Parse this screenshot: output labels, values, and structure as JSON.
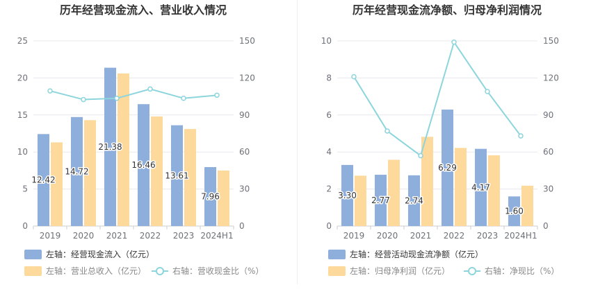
{
  "chart_data": [
    {
      "type": "bar",
      "title": "历年经营现金流入、营业收入情况",
      "categories": [
        "2019",
        "2020",
        "2021",
        "2022",
        "2023",
        "2024H1"
      ],
      "ylim_left": [
        0,
        25
      ],
      "yticks_left": [
        "0",
        "5",
        "10",
        "15",
        "20",
        "25"
      ],
      "ylim_right": [
        0,
        150
      ],
      "yticks_right": [
        "0",
        "30",
        "60",
        "90",
        "120",
        "150"
      ],
      "grid": true,
      "legend_position": "bottom",
      "series": [
        {
          "name": "左轴：经营现金流入（亿元）",
          "axis": "left",
          "kind": "bar",
          "color": "#8eaedc",
          "values": [
            12.42,
            14.72,
            21.38,
            16.46,
            13.61,
            7.96
          ],
          "labels": [
            "12.42",
            "14.72",
            "21.38",
            "16.46",
            "13.61",
            "7.96"
          ]
        },
        {
          "name": "左轴：营业总收入（亿元）",
          "axis": "left",
          "kind": "bar",
          "color": "#fdd99b",
          "values": [
            11.3,
            14.3,
            20.6,
            14.8,
            13.1,
            7.5
          ]
        },
        {
          "name": "右轴：营收现金比（%）",
          "axis": "right",
          "kind": "line",
          "color": "#8cd5dc",
          "values": [
            109.5,
            102.5,
            103.5,
            111,
            103.5,
            106
          ]
        }
      ]
    },
    {
      "type": "bar",
      "title": "历年经营现金流净额、归母净利润情况",
      "categories": [
        "2019",
        "2020",
        "2021",
        "2022",
        "2023",
        "2024H1"
      ],
      "ylim_left": [
        0,
        10
      ],
      "yticks_left": [
        "0",
        "2",
        "4",
        "6",
        "8",
        "10"
      ],
      "ylim_right": [
        0,
        150
      ],
      "yticks_right": [
        "0",
        "30",
        "60",
        "90",
        "120",
        "150"
      ],
      "grid": true,
      "legend_position": "bottom",
      "series": [
        {
          "name": "左轴：经营活动现金流净额（亿元）",
          "axis": "left",
          "kind": "bar",
          "color": "#8eaedc",
          "values": [
            3.3,
            2.77,
            2.74,
            6.29,
            4.17,
            1.6
          ],
          "labels": [
            "3.30",
            "2.77",
            "2.74",
            "6.29",
            "4.17",
            "1.60"
          ]
        },
        {
          "name": "左轴：归母净利润（亿元）",
          "axis": "left",
          "kind": "bar",
          "color": "#fdd99b",
          "values": [
            2.72,
            3.58,
            4.82,
            4.22,
            3.82,
            2.18
          ]
        },
        {
          "name": "右轴：净现比（%）",
          "axis": "right",
          "kind": "line",
          "color": "#8cd5dc",
          "values": [
            121,
            77,
            57,
            149,
            109,
            73
          ]
        }
      ]
    }
  ]
}
